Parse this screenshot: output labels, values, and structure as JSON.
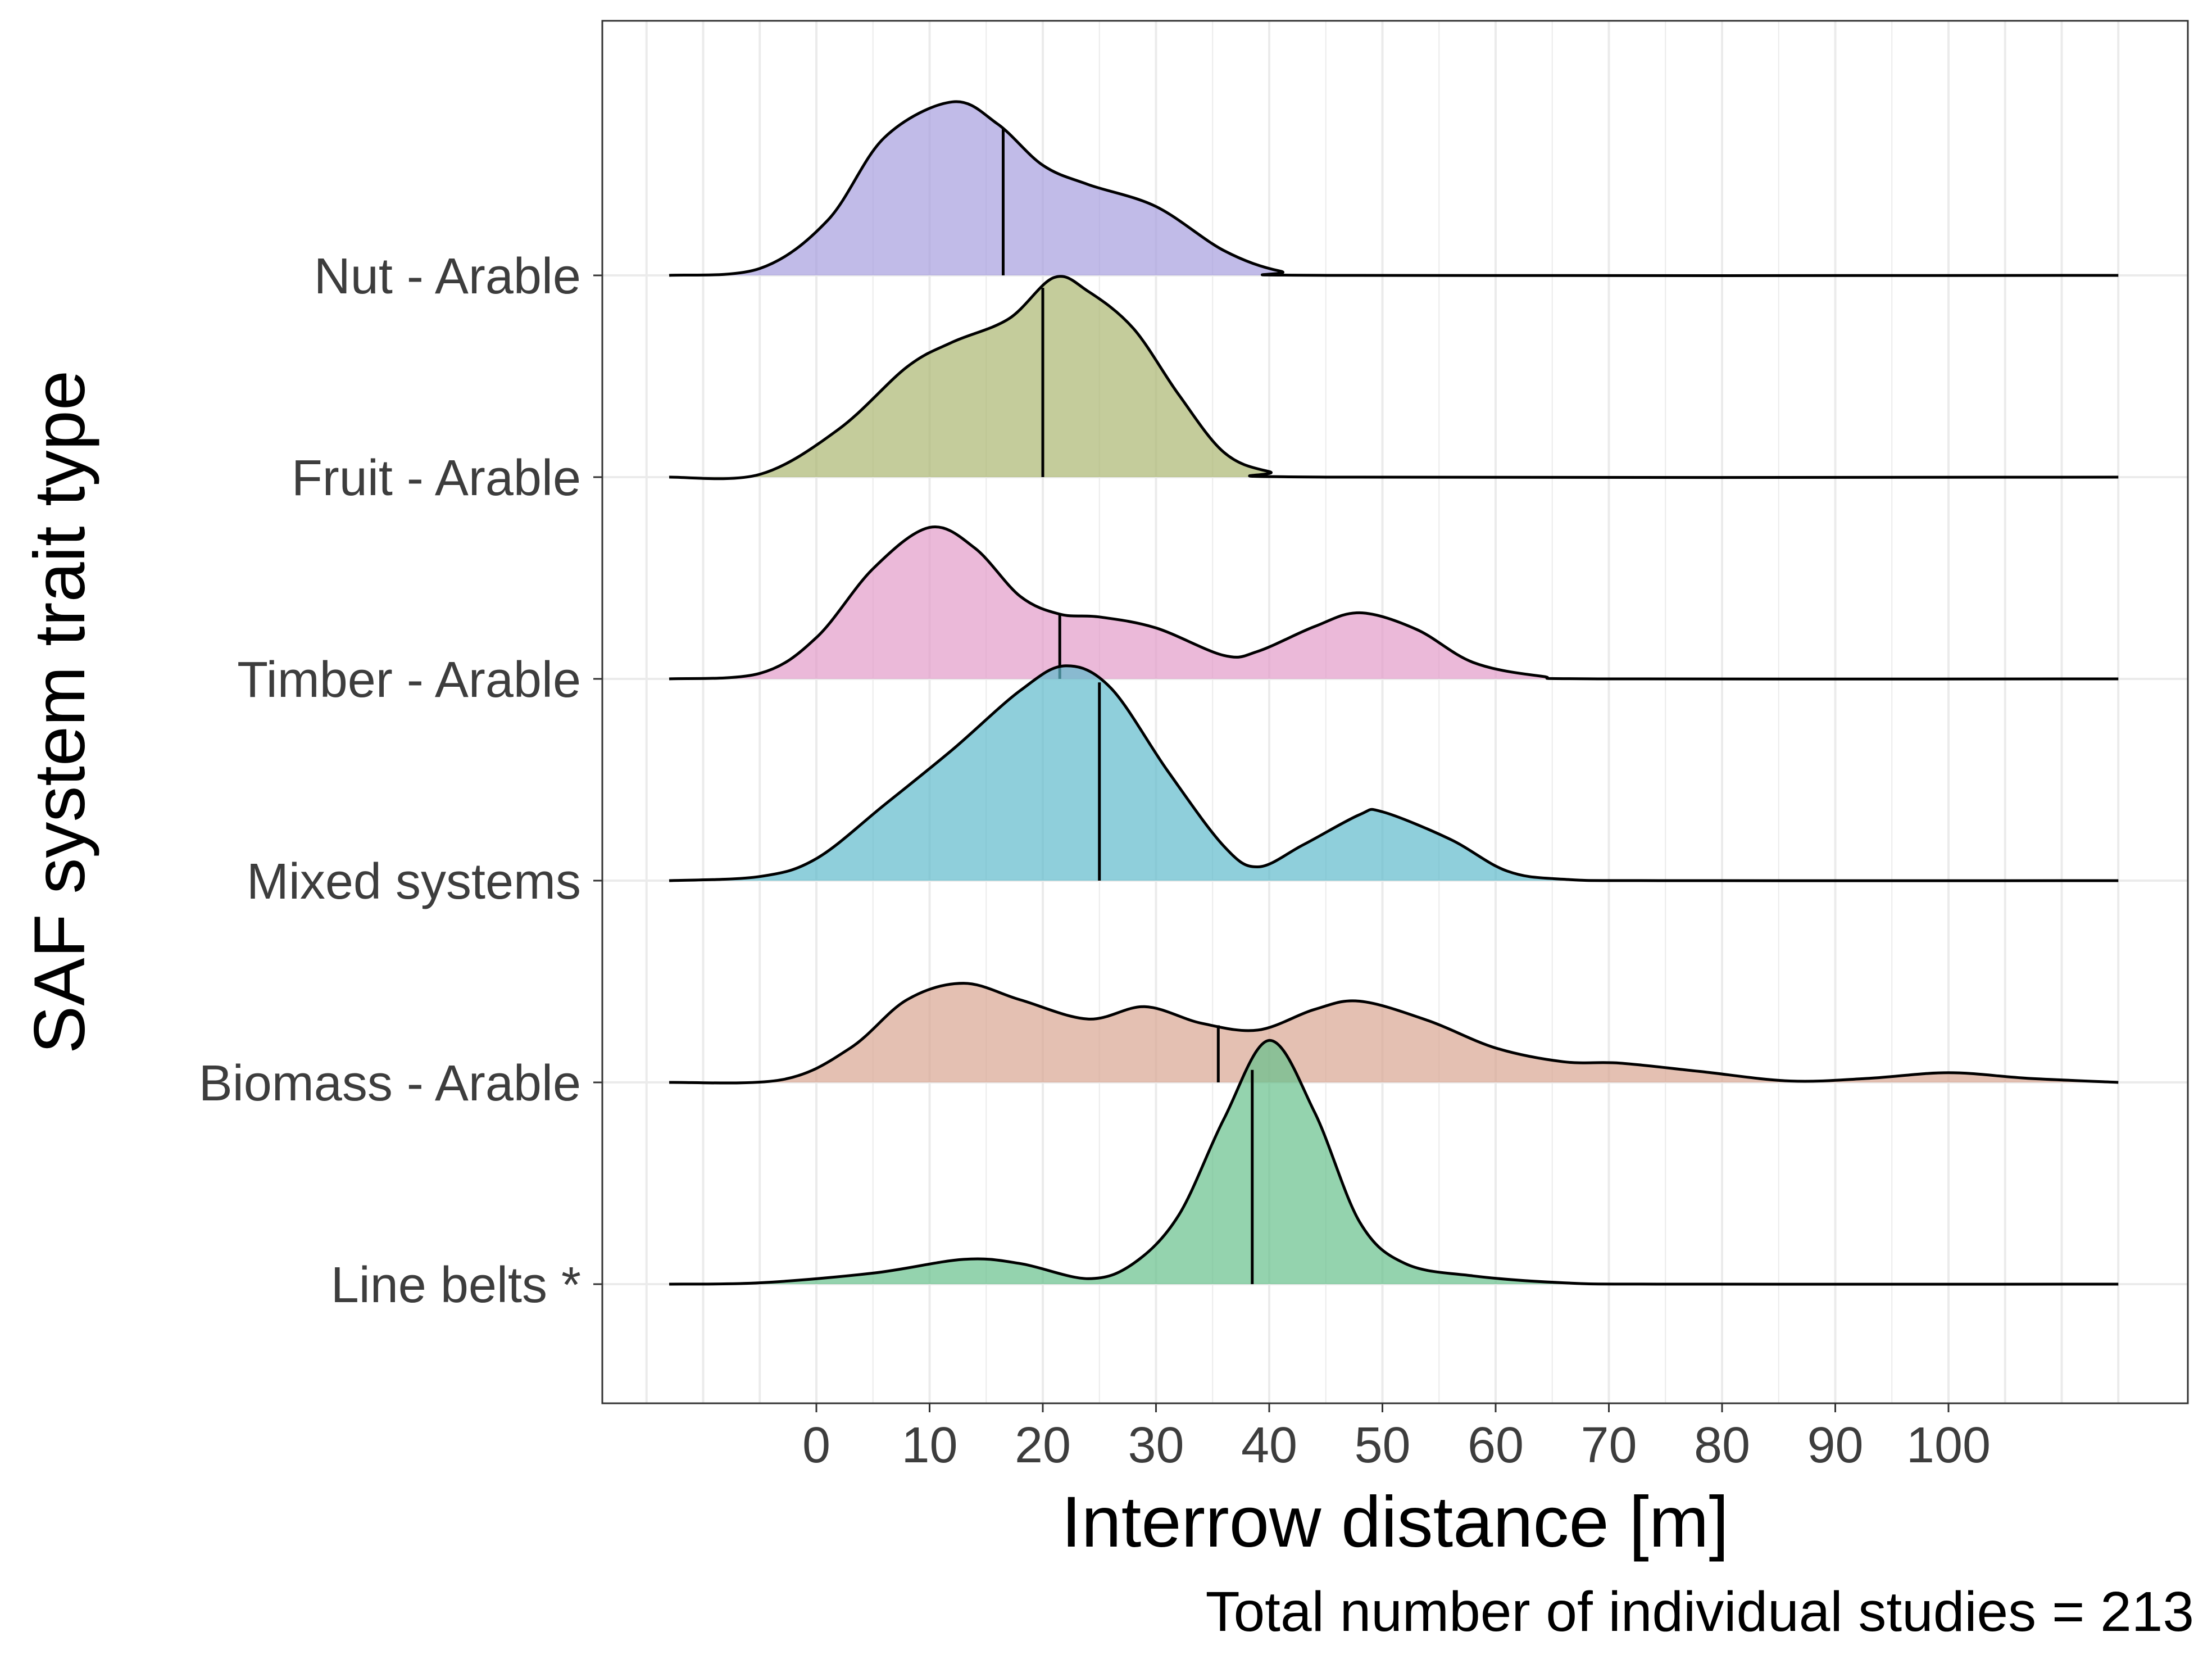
{
  "chart_data": {
    "type": "ridgeline-density",
    "title": "",
    "xlabel": "Interrow distance [m]",
    "ylabel": "SAF system trait type",
    "caption": "Total number of individual studies = 213",
    "x_ticks": [
      0,
      10,
      20,
      30,
      40,
      50,
      60,
      70,
      80,
      90,
      100
    ],
    "xlim": [
      -19,
      116
    ],
    "grid": true,
    "legend": "none",
    "series": [
      {
        "label": "Line belts *",
        "color": "#66c08c",
        "median": 38.5,
        "density": [
          [
            -13,
            0
          ],
          [
            -5,
            0.01
          ],
          [
            5,
            0.08
          ],
          [
            13,
            0.18
          ],
          [
            18,
            0.15
          ],
          [
            24,
            0.04
          ],
          [
            28,
            0.15
          ],
          [
            32,
            0.5
          ],
          [
            36,
            1.2
          ],
          [
            40,
            1.77
          ],
          [
            44,
            1.25
          ],
          [
            48,
            0.45
          ],
          [
            52,
            0.15
          ],
          [
            58,
            0.06
          ],
          [
            66,
            0.01
          ],
          [
            75,
            0
          ],
          [
            115,
            0
          ]
        ]
      },
      {
        "label": "Biomass - Arable",
        "color": "#d9a592",
        "median": 35.5,
        "density": [
          [
            -13,
            0
          ],
          [
            -3,
            0.02
          ],
          [
            3,
            0.25
          ],
          [
            8,
            0.6
          ],
          [
            13,
            0.72
          ],
          [
            18,
            0.6
          ],
          [
            24,
            0.46
          ],
          [
            29,
            0.55
          ],
          [
            34,
            0.43
          ],
          [
            39,
            0.38
          ],
          [
            44,
            0.53
          ],
          [
            48,
            0.59
          ],
          [
            54,
            0.45
          ],
          [
            60,
            0.25
          ],
          [
            66,
            0.15
          ],
          [
            71,
            0.14
          ],
          [
            78,
            0.08
          ],
          [
            86,
            0.01
          ],
          [
            93,
            0.03
          ],
          [
            100,
            0.07
          ],
          [
            107,
            0.03
          ],
          [
            115,
            0
          ]
        ]
      },
      {
        "label": "Mixed systems",
        "color": "#5fbbcc",
        "median": 25,
        "density": [
          [
            -13,
            0
          ],
          [
            -5,
            0.03
          ],
          [
            0,
            0.16
          ],
          [
            6,
            0.55
          ],
          [
            12,
            0.95
          ],
          [
            18,
            1.38
          ],
          [
            22,
            1.56
          ],
          [
            26,
            1.4
          ],
          [
            31,
            0.8
          ],
          [
            36,
            0.25
          ],
          [
            39,
            0.1
          ],
          [
            43,
            0.26
          ],
          [
            48,
            0.48
          ],
          [
            50,
            0.5
          ],
          [
            56,
            0.3
          ],
          [
            61,
            0.07
          ],
          [
            66,
            0.01
          ],
          [
            75,
            0
          ],
          [
            115,
            0
          ]
        ]
      },
      {
        "label": "Timber - Arable",
        "color": "#e29bc9",
        "median": 21.5,
        "density": [
          [
            -13,
            0
          ],
          [
            -5,
            0.04
          ],
          [
            0,
            0.3
          ],
          [
            5,
            0.8
          ],
          [
            10,
            1.1
          ],
          [
            14,
            0.95
          ],
          [
            18,
            0.6
          ],
          [
            21.5,
            0.47
          ],
          [
            25,
            0.45
          ],
          [
            30,
            0.37
          ],
          [
            36,
            0.17
          ],
          [
            39,
            0.2
          ],
          [
            44,
            0.38
          ],
          [
            48,
            0.48
          ],
          [
            53,
            0.36
          ],
          [
            58,
            0.12
          ],
          [
            64,
            0.02
          ],
          [
            70,
            0
          ],
          [
            115,
            0
          ]
        ]
      },
      {
        "label": "Fruit - Arable",
        "color": "#abb670",
        "median": 20,
        "density": [
          [
            -13,
            0
          ],
          [
            -5,
            0.02
          ],
          [
            2,
            0.35
          ],
          [
            8,
            0.8
          ],
          [
            12,
            0.98
          ],
          [
            17,
            1.15
          ],
          [
            21,
            1.45
          ],
          [
            24,
            1.35
          ],
          [
            28,
            1.08
          ],
          [
            32,
            0.6
          ],
          [
            36,
            0.18
          ],
          [
            40,
            0.04
          ],
          [
            45,
            0
          ],
          [
            115,
            0
          ]
        ]
      },
      {
        "label": "Nut - Arable",
        "color": "#a79ede",
        "median": 16.5,
        "density": [
          [
            -13,
            0
          ],
          [
            -5,
            0.05
          ],
          [
            1,
            0.4
          ],
          [
            6,
            1.0
          ],
          [
            12,
            1.26
          ],
          [
            16,
            1.1
          ],
          [
            20,
            0.8
          ],
          [
            24,
            0.66
          ],
          [
            30,
            0.5
          ],
          [
            36,
            0.18
          ],
          [
            41,
            0.03
          ],
          [
            46,
            0
          ],
          [
            115,
            0
          ]
        ]
      }
    ]
  }
}
